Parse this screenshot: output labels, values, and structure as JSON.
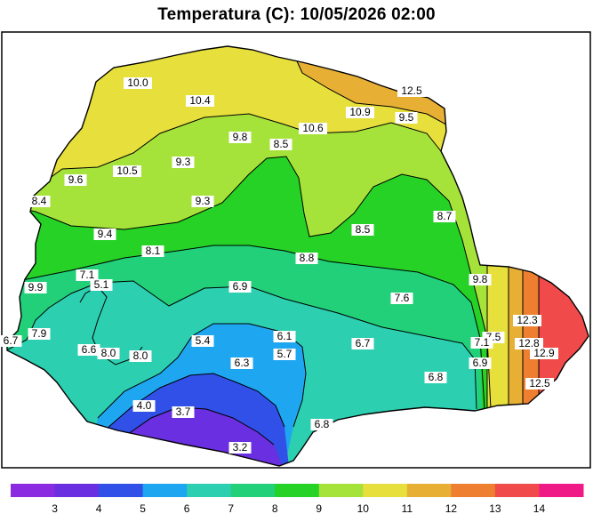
{
  "title": "Temperatura (C): 10/05/2026 02:00",
  "colors": {
    "t3": "#8a2be2",
    "t4": "#6a2fe0",
    "t5": "#3050e8",
    "t6": "#1ea7f0",
    "t7": "#2ccfb0",
    "t8": "#22d07a",
    "t9": "#25d225",
    "t10": "#a6e33a",
    "t11": "#e6df3c",
    "t12": "#e7b035",
    "t13": "#ef7f30",
    "t14": "#f14a4a",
    "t15": "#f01a86"
  },
  "labels": [
    {
      "text": "10.0"
    },
    {
      "text": "10.4"
    },
    {
      "text": "12.5"
    },
    {
      "text": "10.9"
    },
    {
      "text": "9.5"
    },
    {
      "text": "10.6"
    },
    {
      "text": "9.8"
    },
    {
      "text": "8.5"
    },
    {
      "text": "9.3"
    },
    {
      "text": "10.5"
    },
    {
      "text": "9.6"
    },
    {
      "text": "8.4"
    },
    {
      "text": "9.3"
    },
    {
      "text": "8.7"
    },
    {
      "text": "9.4"
    },
    {
      "text": "8.5"
    },
    {
      "text": "8.1"
    },
    {
      "text": "8.8"
    },
    {
      "text": "9.8"
    },
    {
      "text": "7.1"
    },
    {
      "text": "5.1"
    },
    {
      "text": "9.9"
    },
    {
      "text": "6.9"
    },
    {
      "text": "7.6"
    },
    {
      "text": "12.3"
    },
    {
      "text": "7.9"
    },
    {
      "text": "6.7"
    },
    {
      "text": "6.6"
    },
    {
      "text": "8.0"
    },
    {
      "text": "8.0"
    },
    {
      "text": "5.4"
    },
    {
      "text": "6.1"
    },
    {
      "text": "6.7"
    },
    {
      "text": "7.5"
    },
    {
      "text": "7.1"
    },
    {
      "text": "12.8"
    },
    {
      "text": "12.9"
    },
    {
      "text": "6.3"
    },
    {
      "text": "5.7"
    },
    {
      "text": "6.9"
    },
    {
      "text": "6.8"
    },
    {
      "text": "12.5"
    },
    {
      "text": "4.0"
    },
    {
      "text": "3.7"
    },
    {
      "text": "6.8"
    },
    {
      "text": "3.2"
    }
  ],
  "legend": {
    "ticks": [
      "3",
      "4",
      "5",
      "6",
      "7",
      "8",
      "9",
      "10",
      "11",
      "12",
      "13",
      "14"
    ]
  }
}
